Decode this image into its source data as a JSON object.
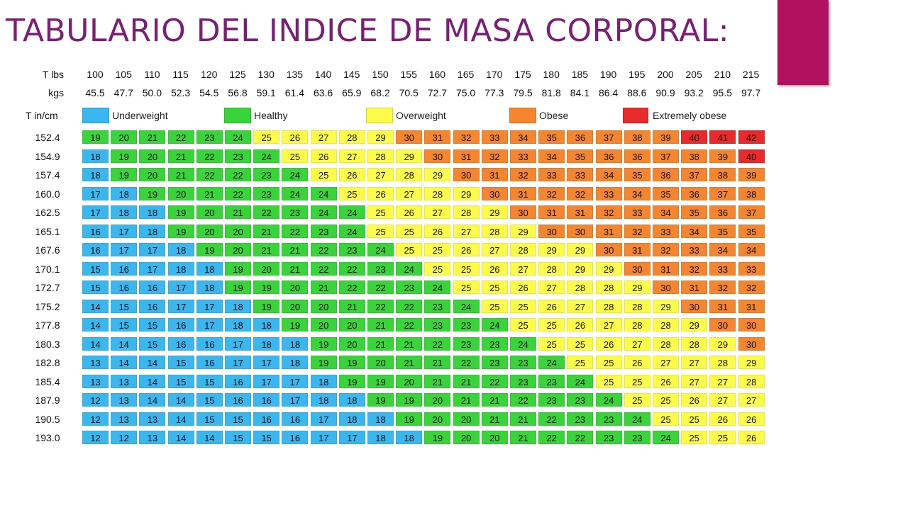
{
  "title": "TABULARIO DEL INDICE DE MASA CORPORAL:",
  "colors": {
    "title": "#7a1f74",
    "accent": "#b0125f",
    "underweight": "#3ab7ef",
    "healthy": "#39d43a",
    "overweight": "#fdfb4a",
    "obese": "#f5862f",
    "extremely_obese": "#ea2a2a"
  },
  "header": {
    "lbs_label": "T lbs",
    "kgs_label": "kgs",
    "height_label": "T in/cm",
    "lbs": [
      "100",
      "105",
      "110",
      "115",
      "120",
      "125",
      "130",
      "135",
      "140",
      "145",
      "150",
      "155",
      "160",
      "165",
      "170",
      "175",
      "180",
      "185",
      "190",
      "195",
      "200",
      "205",
      "210",
      "215"
    ],
    "kgs": [
      "45.5",
      "47.7",
      "50.0",
      "52.3",
      "54.5",
      "56.8",
      "59.1",
      "61.4",
      "63.6",
      "65.9",
      "68.2",
      "70.5",
      "72.7",
      "75.0",
      "77.3",
      "79.5",
      "81.8",
      "84.1",
      "86.4",
      "88.6",
      "90.9",
      "93.2",
      "95.5",
      "97.7"
    ]
  },
  "legend": [
    {
      "label": "Underweight",
      "category": "underweight"
    },
    {
      "label": "Healthy",
      "category": "healthy"
    },
    {
      "label": "Overweight",
      "category": "overweight"
    },
    {
      "label": "Obese",
      "category": "obese"
    },
    {
      "label": "Extremely obese",
      "category": "extremely_obese"
    }
  ],
  "rows": [
    {
      "height": "152.4",
      "values": [
        "19",
        "20",
        "21",
        "22",
        "23",
        "24",
        "25",
        "26",
        "27",
        "28",
        "29",
        "30",
        "31",
        "32",
        "33",
        "34",
        "35",
        "36",
        "37",
        "38",
        "39",
        "40",
        "41",
        "42"
      ]
    },
    {
      "height": "154.9",
      "values": [
        "18",
        "19",
        "20",
        "21",
        "22",
        "23",
        "24",
        "25",
        "26",
        "27",
        "28",
        "29",
        "30",
        "31",
        "32",
        "33",
        "34",
        "35",
        "36",
        "36",
        "37",
        "38",
        "39",
        "40"
      ]
    },
    {
      "height": "157.4",
      "values": [
        "18",
        "19",
        "20",
        "21",
        "22",
        "22",
        "23",
        "24",
        "25",
        "26",
        "27",
        "28",
        "29",
        "30",
        "31",
        "32",
        "33",
        "33",
        "34",
        "35",
        "36",
        "37",
        "38",
        "39"
      ]
    },
    {
      "height": "160.0",
      "values": [
        "17",
        "18",
        "19",
        "20",
        "21",
        "22",
        "23",
        "24",
        "24",
        "25",
        "26",
        "27",
        "28",
        "29",
        "30",
        "31",
        "32",
        "32",
        "33",
        "34",
        "35",
        "36",
        "37",
        "38"
      ]
    },
    {
      "height": "162.5",
      "values": [
        "17",
        "18",
        "18",
        "19",
        "20",
        "21",
        "22",
        "23",
        "24",
        "24",
        "25",
        "26",
        "27",
        "28",
        "29",
        "30",
        "31",
        "31",
        "32",
        "33",
        "34",
        "35",
        "36",
        "37"
      ]
    },
    {
      "height": "165.1",
      "values": [
        "16",
        "17",
        "18",
        "19",
        "20",
        "20",
        "21",
        "22",
        "23",
        "24",
        "25",
        "25",
        "26",
        "27",
        "28",
        "29",
        "30",
        "30",
        "31",
        "32",
        "33",
        "34",
        "35",
        "35"
      ]
    },
    {
      "height": "167.6",
      "values": [
        "16",
        "17",
        "17",
        "18",
        "19",
        "20",
        "21",
        "21",
        "22",
        "23",
        "24",
        "25",
        "25",
        "26",
        "27",
        "28",
        "29",
        "29",
        "30",
        "31",
        "32",
        "33",
        "34",
        "34"
      ]
    },
    {
      "height": "170.1",
      "values": [
        "15",
        "16",
        "17",
        "18",
        "18",
        "19",
        "20",
        "21",
        "22",
        "22",
        "23",
        "24",
        "25",
        "25",
        "26",
        "27",
        "28",
        "29",
        "29",
        "30",
        "31",
        "32",
        "33",
        "33"
      ]
    },
    {
      "height": "172.7",
      "values": [
        "15",
        "16",
        "16",
        "17",
        "18",
        "19",
        "19",
        "20",
        "21",
        "22",
        "22",
        "23",
        "24",
        "25",
        "25",
        "26",
        "27",
        "28",
        "28",
        "29",
        "30",
        "31",
        "32",
        "32"
      ]
    },
    {
      "height": "175.2",
      "values": [
        "14",
        "15",
        "16",
        "17",
        "17",
        "18",
        "19",
        "20",
        "20",
        "21",
        "22",
        "22",
        "23",
        "24",
        "25",
        "25",
        "26",
        "27",
        "28",
        "28",
        "29",
        "30",
        "31",
        "31"
      ]
    },
    {
      "height": "177.8",
      "values": [
        "14",
        "15",
        "15",
        "16",
        "17",
        "18",
        "18",
        "19",
        "20",
        "20",
        "21",
        "22",
        "23",
        "23",
        "24",
        "25",
        "25",
        "26",
        "27",
        "28",
        "28",
        "29",
        "30",
        "30"
      ]
    },
    {
      "height": "180.3",
      "values": [
        "14",
        "14",
        "15",
        "16",
        "16",
        "17",
        "18",
        "18",
        "19",
        "20",
        "21",
        "21",
        "22",
        "23",
        "23",
        "24",
        "25",
        "25",
        "26",
        "27",
        "28",
        "28",
        "29",
        "30"
      ]
    },
    {
      "height": "182.8",
      "values": [
        "13",
        "14",
        "14",
        "15",
        "16",
        "17",
        "17",
        "18",
        "19",
        "19",
        "20",
        "21",
        "21",
        "22",
        "23",
        "23",
        "24",
        "25",
        "25",
        "26",
        "27",
        "27",
        "28",
        "29"
      ]
    },
    {
      "height": "185.4",
      "values": [
        "13",
        "13",
        "14",
        "15",
        "15",
        "16",
        "17",
        "17",
        "18",
        "19",
        "19",
        "20",
        "21",
        "21",
        "22",
        "23",
        "23",
        "24",
        "25",
        "25",
        "26",
        "27",
        "27",
        "28"
      ]
    },
    {
      "height": "187.9",
      "values": [
        "12",
        "13",
        "14",
        "14",
        "15",
        "16",
        "16",
        "17",
        "18",
        "18",
        "19",
        "19",
        "20",
        "21",
        "21",
        "22",
        "23",
        "23",
        "24",
        "25",
        "25",
        "26",
        "27",
        "27"
      ]
    },
    {
      "height": "190.5",
      "values": [
        "12",
        "13",
        "13",
        "14",
        "15",
        "15",
        "16",
        "16",
        "17",
        "18",
        "18",
        "19",
        "20",
        "20",
        "21",
        "21",
        "22",
        "23",
        "23",
        "24",
        "25",
        "25",
        "26",
        "26"
      ]
    },
    {
      "height": "193.0",
      "values": [
        "12",
        "12",
        "13",
        "14",
        "14",
        "15",
        "15",
        "16",
        "17",
        "17",
        "18",
        "18",
        "19",
        "20",
        "20",
        "21",
        "22",
        "22",
        "23",
        "23",
        "24",
        "25",
        "25",
        "26"
      ]
    }
  ]
}
